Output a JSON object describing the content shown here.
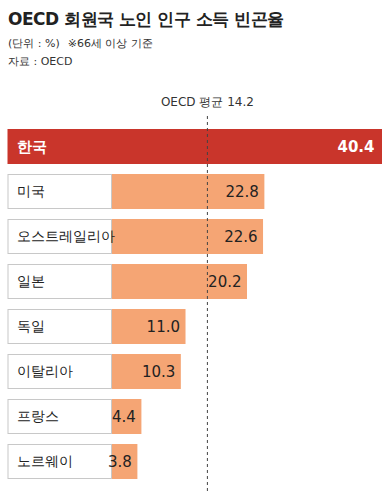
{
  "chart_data": {
    "type": "bar",
    "orientation": "horizontal",
    "title": "OECD 회원국 노인 인구 소득 빈곤율",
    "subtitle": "(단위 : %)",
    "note": "※66세 이상 기준",
    "source": "자료 : OECD",
    "categories": [
      "한국",
      "미국",
      "오스트레일리아",
      "일본",
      "독일",
      "이탈리아",
      "프랑스",
      "노르웨이"
    ],
    "values": [
      40.4,
      22.8,
      22.6,
      20.2,
      11.0,
      10.3,
      4.4,
      3.8
    ],
    "value_labels": [
      "40.4",
      "22.8",
      "22.6",
      "20.2",
      "11.0",
      "10.3",
      "4.4",
      "3.8"
    ],
    "colors": [
      "#c9352b",
      "#f5a574",
      "#f5a574",
      "#f5a574",
      "#f5a574",
      "#f5a574",
      "#f5a574",
      "#f5a574"
    ],
    "data_labels": true,
    "grid": false,
    "average": {
      "label": "OECD 평균 14.2",
      "value": 14.2
    }
  }
}
